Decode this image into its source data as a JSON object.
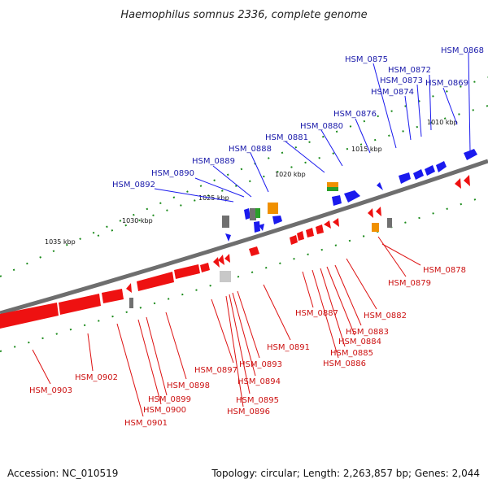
{
  "title": "Haemophilus somnus 2336, complete genome",
  "footer": {
    "accession": "Accession: NC_010519",
    "summary": "Topology: circular; Length: 2,263,857 bp; Genes: 2,044"
  },
  "colors": {
    "forward_gene": "#1a1aee",
    "reverse_gene": "#ee1111",
    "forward_label": "#1a1aaa",
    "reverse_label": "#cc1111",
    "backbone": "#777777",
    "tick": "#1a8a1a"
  },
  "scale_labels": [
    "1010 kbp",
    "1015 kbp",
    "1020 kbp",
    "1025 kbp",
    "1030 kbp",
    "1035 kbp"
  ],
  "forward_genes": [
    "HSM_0868",
    "HSM_0869",
    "HSM_0872",
    "HSM_0873",
    "HSM_0874",
    "HSM_0875",
    "HSM_0876",
    "HSM_0880",
    "HSM_0881",
    "HSM_0888",
    "HSM_0889",
    "HSM_0890",
    "HSM_0892"
  ],
  "reverse_genes": [
    "HSM_0878",
    "HSM_0879",
    "HSM_0882",
    "HSM_0883",
    "HSM_0884",
    "HSM_0885",
    "HSM_0886",
    "HSM_0887",
    "HSM_0891",
    "HSM_0893",
    "HSM_0894",
    "HSM_0895",
    "HSM_0896",
    "HSM_0897",
    "HSM_0898",
    "HSM_0899",
    "HSM_0900",
    "HSM_0901",
    "HSM_0902",
    "HSM_0903"
  ]
}
